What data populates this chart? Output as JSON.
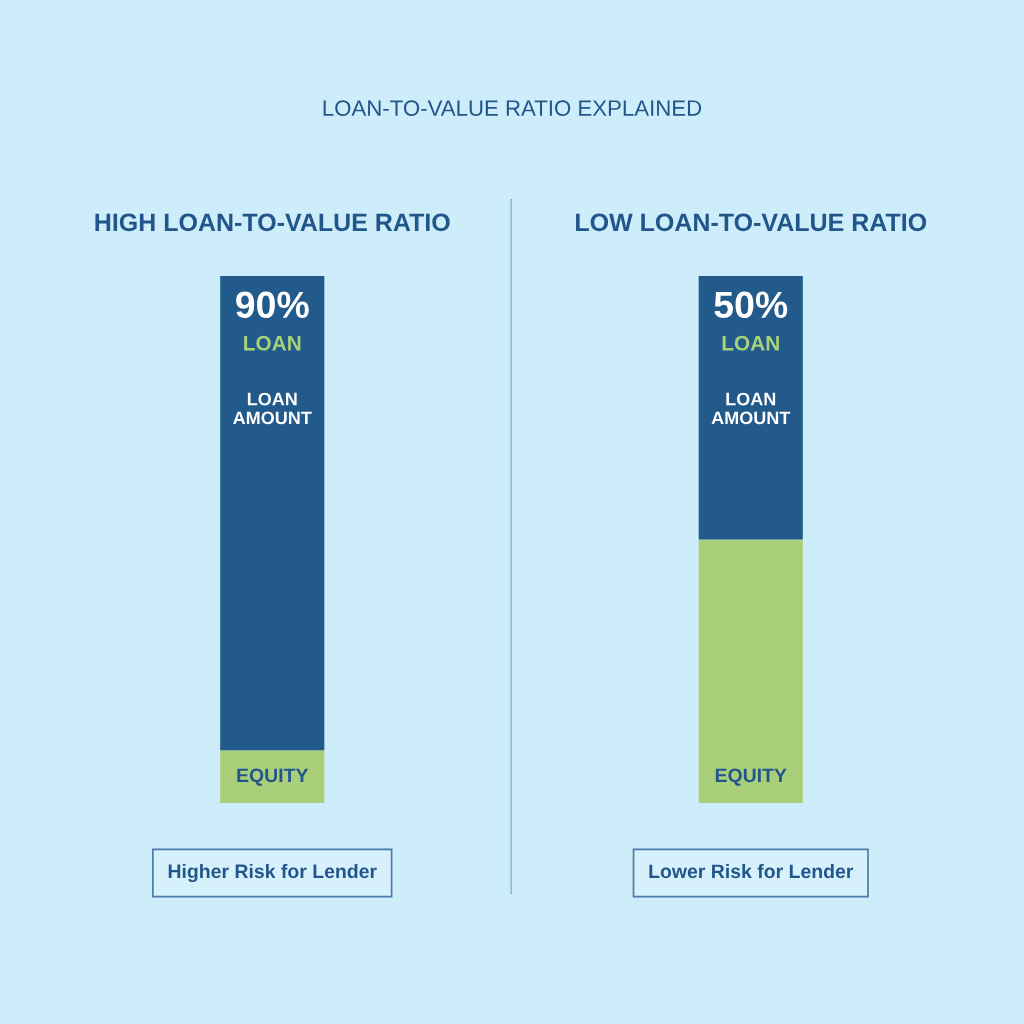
{
  "chart_data": [
    {
      "type": "bar",
      "stacked": true,
      "title": "LOAN-TO-VALUE RATIO EXPLAINED",
      "categories": [
        "HIGH LOAN-TO-VALUE RATIO"
      ],
      "series": [
        {
          "name": "EQUITY",
          "color": "#a9cf7b",
          "values": [
            10
          ]
        },
        {
          "name": "LOAN AMOUNT",
          "color": "#235a8c",
          "values": [
            90
          ],
          "value_labels": [
            "90%"
          ]
        }
      ],
      "annotations": [
        "LOAN",
        "Higher Risk for Lender"
      ]
    },
    {
      "type": "bar",
      "stacked": true,
      "categories": [
        "LOW LOAN-TO-VALUE RATIO"
      ],
      "series": [
        {
          "name": "EQUITY",
          "color": "#a9cf7b",
          "values": [
            50
          ]
        },
        {
          "name": "LOAN AMOUNT",
          "color": "#235a8c",
          "values": [
            50
          ],
          "value_labels": [
            "50%"
          ]
        }
      ],
      "annotations": [
        "LOAN",
        "Lower Risk for Lender"
      ]
    }
  ]
}
